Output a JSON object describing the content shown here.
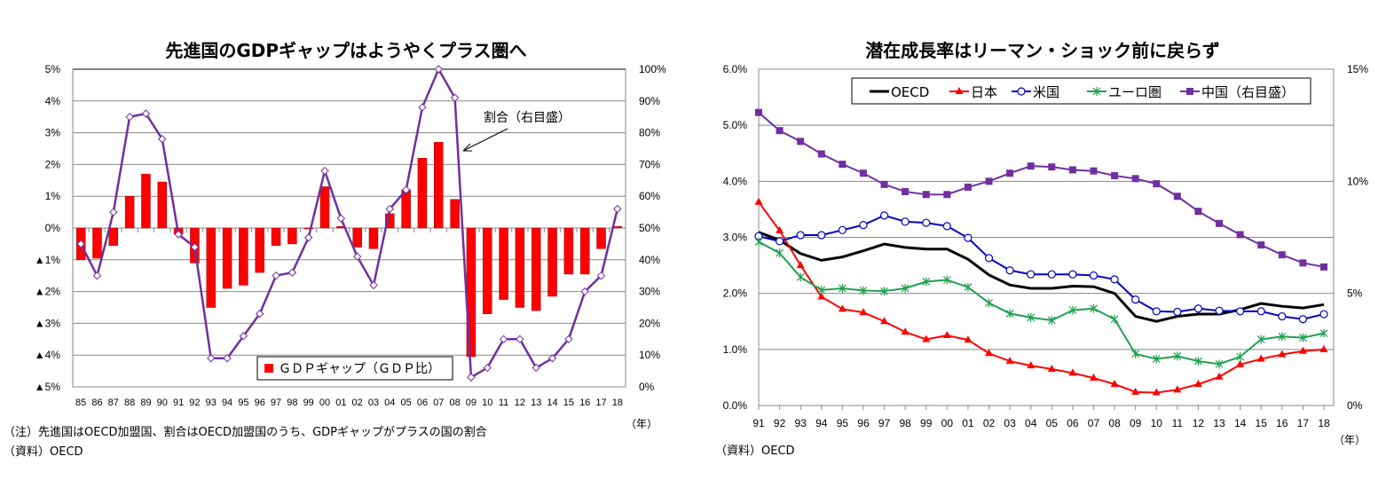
{
  "chart_data": [
    {
      "type": "bar+line",
      "title": "先進国のGDPギャップはようやくプラス圏へ",
      "categories": [
        "85",
        "86",
        "87",
        "88",
        "89",
        "90",
        "91",
        "92",
        "93",
        "94",
        "95",
        "96",
        "97",
        "98",
        "99",
        "00",
        "01",
        "02",
        "03",
        "04",
        "05",
        "06",
        "07",
        "08",
        "09",
        "10",
        "11",
        "12",
        "13",
        "14",
        "15",
        "16",
        "17",
        "18"
      ],
      "x_unit": "（年）",
      "y_left": {
        "ylim": [
          -5,
          5
        ],
        "tick_labels": [
          "5%",
          "4%",
          "3%",
          "2%",
          "1%",
          "0%",
          "▲1%",
          "▲2%",
          "▲3%",
          "▲4%",
          "▲5%"
        ]
      },
      "y_right": {
        "ylim": [
          0,
          100
        ],
        "tick_labels": [
          "100%",
          "90%",
          "80%",
          "70%",
          "60%",
          "50%",
          "40%",
          "30%",
          "20%",
          "10%",
          "0%"
        ]
      },
      "grid": true,
      "series": [
        {
          "name": "ＧＤＰギャップ（ＧＤＰ比）",
          "type": "bar",
          "axis": "left",
          "color": "#ff0000",
          "values": [
            -1.0,
            -0.95,
            -0.55,
            1.0,
            1.7,
            1.45,
            -0.2,
            -1.1,
            -2.5,
            -1.9,
            -1.8,
            -1.4,
            -0.55,
            -0.5,
            -0.02,
            1.3,
            0.05,
            -0.6,
            -0.65,
            0.45,
            1.2,
            2.2,
            2.7,
            0.9,
            -4.05,
            -2.7,
            -2.25,
            -2.5,
            -2.6,
            -2.15,
            -1.45,
            -1.45,
            -0.65,
            0.05
          ]
        },
        {
          "name": "割合（右目盛）",
          "type": "line",
          "axis": "right",
          "color": "#7030a0",
          "marker": "diamond-open",
          "values": [
            45,
            35,
            55,
            85,
            86,
            78,
            48,
            44,
            9,
            9,
            16,
            23,
            35,
            36,
            47,
            68,
            53,
            41,
            32,
            56,
            62,
            88,
            100,
            91,
            3,
            6,
            15,
            15,
            6,
            9,
            15,
            30,
            35,
            56
          ]
        }
      ],
      "legend": "bottom-center",
      "annotation": "割合（右目盛）",
      "notes": [
        "（注）先進国はOECD加盟国、割合はOECD加盟国のうち、GDPギャップがプラスの国の割合",
        "（資料）OECD"
      ]
    },
    {
      "type": "line",
      "title": "潜在成長率はリーマン・ショック前に戻らず",
      "categories": [
        "91",
        "92",
        "93",
        "94",
        "95",
        "96",
        "97",
        "98",
        "99",
        "00",
        "01",
        "02",
        "03",
        "04",
        "05",
        "06",
        "07",
        "08",
        "09",
        "10",
        "11",
        "12",
        "13",
        "14",
        "15",
        "16",
        "17",
        "18"
      ],
      "x_unit": "（年）",
      "y_left": {
        "ylim": [
          0,
          6
        ],
        "tick_labels": [
          "6.0%",
          "5.0%",
          "4.0%",
          "3.0%",
          "2.0%",
          "1.0%",
          "0.0%"
        ]
      },
      "y_right": {
        "ylim": [
          0,
          15
        ],
        "tick_labels": [
          "15%",
          "10%",
          "5%",
          "0%"
        ]
      },
      "grid": true,
      "legend": "top",
      "series": [
        {
          "name": "OECD",
          "axis": "left",
          "color": "#000000",
          "marker": "none",
          "values": [
            3.09,
            2.95,
            2.71,
            2.59,
            2.65,
            2.76,
            2.88,
            2.82,
            2.79,
            2.79,
            2.61,
            2.33,
            2.15,
            2.09,
            2.09,
            2.13,
            2.12,
            2.0,
            1.59,
            1.5,
            1.59,
            1.63,
            1.63,
            1.71,
            1.82,
            1.77,
            1.74,
            1.8
          ]
        },
        {
          "name": "日本",
          "axis": "left",
          "color": "#ff0000",
          "marker": "triangle",
          "values": [
            3.63,
            3.12,
            2.5,
            1.94,
            1.72,
            1.66,
            1.5,
            1.31,
            1.18,
            1.25,
            1.17,
            0.93,
            0.79,
            0.71,
            0.65,
            0.58,
            0.49,
            0.38,
            0.24,
            0.23,
            0.28,
            0.38,
            0.51,
            0.73,
            0.83,
            0.91,
            0.97,
            1.0
          ]
        },
        {
          "name": "米国",
          "axis": "left",
          "color": "#0000c0",
          "marker": "circle-open",
          "values": [
            3.02,
            2.93,
            3.04,
            3.04,
            3.13,
            3.22,
            3.39,
            3.28,
            3.26,
            3.2,
            2.99,
            2.63,
            2.41,
            2.34,
            2.34,
            2.34,
            2.32,
            2.25,
            1.89,
            1.68,
            1.67,
            1.73,
            1.69,
            1.68,
            1.68,
            1.59,
            1.54,
            1.63
          ]
        },
        {
          "name": "ユーロ圏",
          "axis": "left",
          "color": "#20a050",
          "marker": "asterisk",
          "values": [
            2.92,
            2.72,
            2.29,
            2.06,
            2.09,
            2.05,
            2.04,
            2.09,
            2.21,
            2.24,
            2.11,
            1.83,
            1.64,
            1.57,
            1.52,
            1.7,
            1.73,
            1.54,
            0.92,
            0.83,
            0.88,
            0.79,
            0.74,
            0.87,
            1.18,
            1.23,
            1.21,
            1.29
          ]
        },
        {
          "name": "中国（右目盛）",
          "axis": "right",
          "color": "#7030a0",
          "marker": "square",
          "values": [
            13.07,
            12.26,
            11.78,
            11.22,
            10.76,
            10.36,
            9.86,
            9.54,
            9.41,
            9.41,
            9.74,
            10.0,
            10.36,
            10.68,
            10.64,
            10.51,
            10.46,
            10.25,
            10.12,
            9.89,
            9.33,
            8.66,
            8.12,
            7.62,
            7.16,
            6.72,
            6.36,
            6.18
          ]
        }
      ],
      "notes": [
        "（資料）OECD"
      ]
    }
  ]
}
